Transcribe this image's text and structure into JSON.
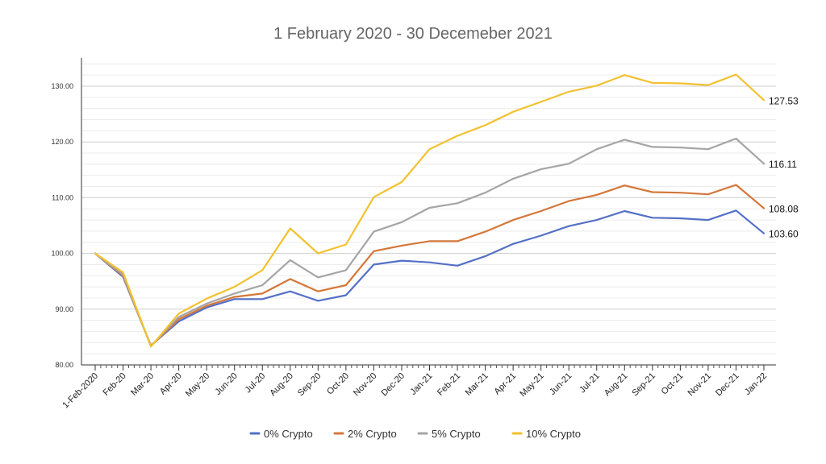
{
  "chart_data": {
    "type": "line",
    "title": "1 February 2020 - 30 Decemeber 2021",
    "xlabel": "",
    "ylabel": "",
    "ylim": [
      80,
      135
    ],
    "yticks": [
      "80.00",
      "90.00",
      "100.00",
      "110.00",
      "120.00",
      "130.00"
    ],
    "categories": [
      "1-Feb-2020",
      "Feb-20",
      "Mar-20",
      "Apr-20",
      "May-20",
      "Jun-20",
      "Jul-20",
      "Aug-20",
      "Sep-20",
      "Oct-20",
      "Nov-20",
      "Dec-20",
      "Jan-21",
      "Feb-21",
      "Mar-21",
      "Apr-21",
      "May-21",
      "Jun-21",
      "Jul-21",
      "Aug-21",
      "Sep-21",
      "Oct-21",
      "Nov-21",
      "Dec-21",
      "Jan-22"
    ],
    "grid": true,
    "legend_position": "bottom",
    "series": [
      {
        "name": "0% Crypto",
        "color": "#5470C6",
        "end_label": "103.60",
        "values": [
          100.0,
          95.8,
          83.5,
          87.8,
          90.3,
          91.8,
          91.8,
          93.2,
          91.5,
          92.5,
          98.0,
          98.7,
          98.4,
          97.8,
          99.5,
          101.7,
          103.2,
          104.9,
          106.0,
          107.6,
          106.4,
          106.3,
          106.0,
          107.7,
          103.6
        ]
      },
      {
        "name": "2% Crypto",
        "color": "#D4773A",
        "end_label": "108.08",
        "values": [
          100.0,
          96.0,
          83.4,
          88.2,
          90.6,
          92.2,
          92.8,
          95.4,
          93.2,
          94.3,
          100.4,
          101.4,
          102.2,
          102.2,
          103.9,
          106.0,
          107.6,
          109.4,
          110.5,
          112.2,
          111.0,
          110.9,
          110.6,
          112.3,
          108.1
        ]
      },
      {
        "name": "5% Crypto",
        "color": "#A5A5A5",
        "end_label": "116.11",
        "values": [
          100.0,
          96.2,
          83.4,
          88.6,
          91.0,
          92.8,
          94.3,
          98.8,
          95.7,
          97.0,
          103.9,
          105.6,
          108.2,
          109.0,
          110.9,
          113.4,
          115.1,
          116.1,
          118.7,
          120.4,
          119.1,
          119.0,
          118.7,
          120.6,
          116.1
        ]
      },
      {
        "name": "10% Crypto",
        "color": "#F2C12E",
        "end_label": "127.53",
        "values": [
          100.0,
          96.6,
          83.3,
          89.2,
          91.9,
          94.0,
          97.0,
          104.5,
          100.0,
          101.6,
          110.1,
          112.8,
          118.7,
          121.1,
          123.0,
          125.4,
          127.2,
          129.0,
          130.1,
          132.0,
          130.6,
          130.5,
          130.2,
          132.1,
          127.5
        ]
      }
    ]
  }
}
